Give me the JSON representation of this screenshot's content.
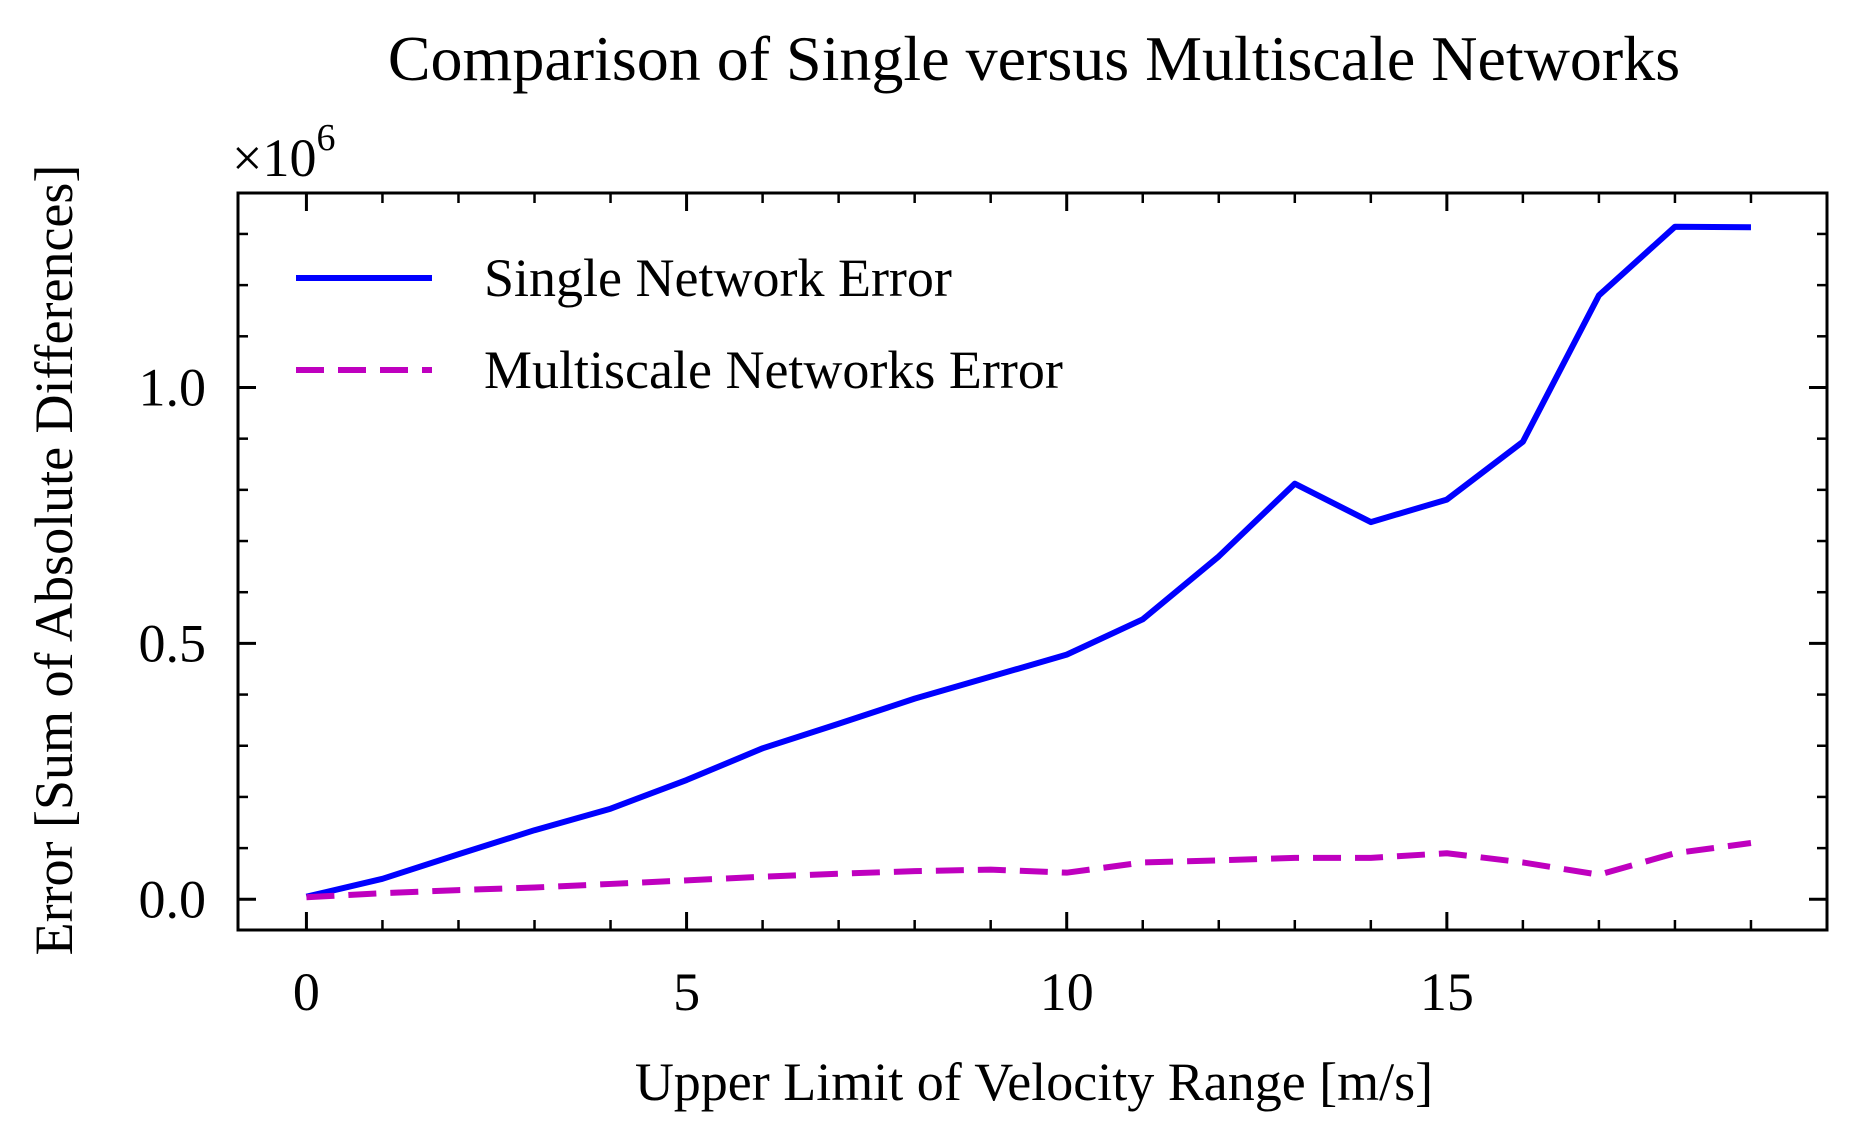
{
  "chart_data": {
    "type": "line",
    "title": "Comparison of Single versus Multiscale Networks",
    "xlabel": "Upper Limit of Velocity Range [m/s]",
    "ylabel": "Error [Sum of Absolute Differences]",
    "y_scale_label": "×10",
    "y_scale_exponent": "6",
    "xlim": [
      -0.9,
      20.0
    ],
    "ylim": [
      -0.06,
      1.38
    ],
    "x_ticks": [
      0,
      5,
      10,
      15
    ],
    "x_tick_labels": [
      "0",
      "5",
      "10",
      "15"
    ],
    "y_ticks": [
      0.0,
      0.5,
      1.0
    ],
    "y_tick_labels": [
      "0.0",
      "0.5",
      "1.0"
    ],
    "grid": false,
    "legend_position": "top-left",
    "x": [
      0,
      1,
      2,
      3,
      4,
      5,
      6,
      7,
      8,
      9,
      10,
      11,
      12,
      13,
      14,
      15,
      16,
      17,
      18,
      19
    ],
    "series": [
      {
        "name": "Single Network Error",
        "color": "#0000ff",
        "dash": "solid",
        "values": [
          0.005,
          0.04,
          0.088,
          0.135,
          0.177,
          0.233,
          0.295,
          0.343,
          0.392,
          0.435,
          0.478,
          0.547,
          0.67,
          0.812,
          0.737,
          0.781,
          0.894,
          1.18,
          1.314,
          1.313
        ]
      },
      {
        "name": "Multiscale Networks Error",
        "color": "#bf00bf",
        "dash": "dashed",
        "values": [
          0.004,
          0.012,
          0.018,
          0.023,
          0.03,
          0.037,
          0.044,
          0.05,
          0.055,
          0.058,
          0.052,
          0.072,
          0.076,
          0.081,
          0.081,
          0.09,
          0.072,
          0.048,
          0.09,
          0.11
        ]
      }
    ]
  }
}
